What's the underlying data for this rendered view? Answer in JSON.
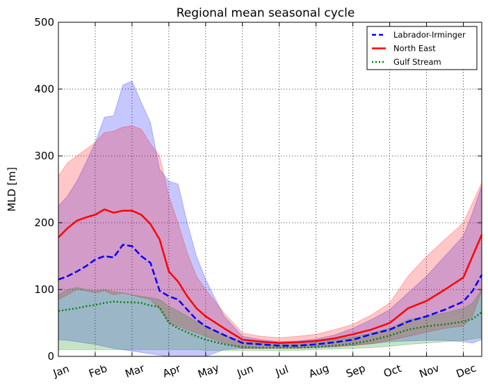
{
  "chart_data": {
    "type": "line",
    "title": "Regional mean seasonal cycle",
    "xlabel": "",
    "ylabel": "MLD [m]",
    "ylim": [
      0,
      500
    ],
    "yticks": [
      0,
      100,
      200,
      300,
      400,
      500
    ],
    "months": [
      "Jan",
      "Feb",
      "Mar",
      "Apr",
      "May",
      "Jun",
      "Jul",
      "Aug",
      "Sep",
      "Oct",
      "Nov",
      "Dec"
    ],
    "x": [
      1.0,
      1.25,
      1.5,
      1.75,
      2.0,
      2.25,
      2.5,
      2.75,
      3.0,
      3.25,
      3.5,
      3.75,
      4.0,
      4.25,
      4.5,
      4.75,
      5.0,
      5.5,
      6.0,
      6.5,
      7.0,
      7.5,
      8.0,
      8.5,
      9.0,
      9.5,
      10.0,
      10.5,
      11.0,
      11.5,
      12.0,
      12.25,
      12.5
    ],
    "grid": true,
    "legend_position": "top-right",
    "series": [
      {
        "name": "Labrador-Irminger",
        "color": "#0000ff",
        "style": "dashed",
        "values": [
          115,
          120,
          127,
          135,
          145,
          150,
          148,
          167,
          165,
          150,
          140,
          98,
          90,
          85,
          70,
          55,
          45,
          32,
          20,
          18,
          16,
          16,
          18,
          21,
          25,
          33,
          40,
          52,
          60,
          70,
          82,
          98,
          122
        ],
        "band_low": [
          25,
          24,
          22,
          20,
          18,
          15,
          12,
          10,
          8,
          6,
          4,
          2,
          0,
          0,
          0,
          0,
          0,
          10,
          12,
          12,
          13,
          13,
          14,
          15,
          17,
          19,
          22,
          23,
          24,
          24,
          22,
          20,
          25
        ],
        "band_high": [
          225,
          240,
          262,
          290,
          320,
          358,
          360,
          406,
          412,
          380,
          350,
          280,
          262,
          258,
          200,
          150,
          115,
          60,
          30,
          25,
          22,
          23,
          26,
          32,
          42,
          55,
          70,
          95,
          120,
          150,
          180,
          215,
          255
        ]
      },
      {
        "name": "North East",
        "color": "#ff0000",
        "style": "solid",
        "values": [
          178,
          192,
          203,
          208,
          212,
          220,
          215,
          218,
          218,
          212,
          198,
          175,
          127,
          112,
          90,
          72,
          60,
          42,
          25,
          22,
          20,
          21,
          23,
          27,
          33,
          40,
          50,
          72,
          83,
          100,
          118,
          150,
          182
        ],
        "band_low": [
          85,
          92,
          100,
          98,
          95,
          98,
          92,
          95,
          92,
          88,
          85,
          70,
          50,
          45,
          40,
          35,
          30,
          20,
          12,
          12,
          12,
          12,
          13,
          14,
          16,
          19,
          24,
          30,
          36,
          42,
          45,
          60,
          98
        ],
        "band_high": [
          270,
          290,
          300,
          310,
          320,
          335,
          337,
          343,
          345,
          340,
          318,
          300,
          240,
          200,
          155,
          120,
          100,
          65,
          35,
          30,
          28,
          30,
          33,
          40,
          48,
          62,
          80,
          120,
          150,
          175,
          200,
          230,
          260
        ]
      },
      {
        "name": "Gulf Stream",
        "color": "#008000",
        "style": "dotted",
        "values": [
          68,
          70,
          72,
          75,
          77,
          80,
          82,
          81,
          81,
          80,
          76,
          74,
          50,
          42,
          36,
          30,
          25,
          18,
          14,
          13,
          13,
          13,
          14,
          16,
          19,
          24,
          31,
          40,
          45,
          48,
          52,
          56,
          66
        ],
        "band_low": [
          10,
          10,
          10,
          10,
          10,
          10,
          10,
          10,
          10,
          10,
          10,
          10,
          10,
          10,
          10,
          10,
          9,
          9,
          9,
          9,
          9,
          9,
          10,
          11,
          12,
          13,
          15,
          18,
          20,
          22,
          24,
          26,
          28
        ],
        "band_high": [
          92,
          100,
          103,
          100,
          98,
          100,
          97,
          95,
          92,
          90,
          88,
          85,
          75,
          68,
          60,
          52,
          45,
          32,
          22,
          20,
          20,
          20,
          22,
          25,
          29,
          35,
          42,
          55,
          60,
          65,
          72,
          80,
          100
        ]
      }
    ]
  }
}
